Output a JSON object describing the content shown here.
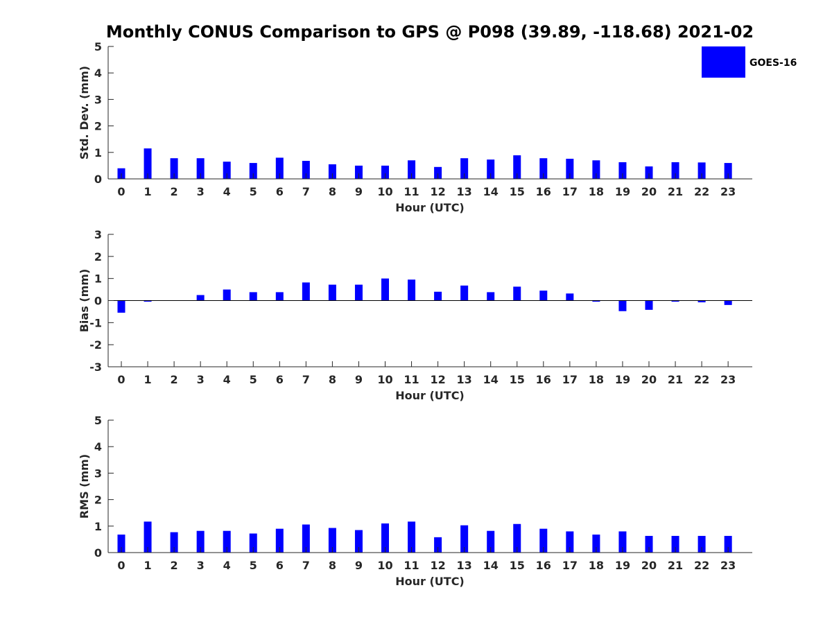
{
  "colors": {
    "bar": "#0000ff",
    "axis": "#262626",
    "background": "#ffffff"
  },
  "chart_data": {
    "type": "bar",
    "title": "Monthly CONUS Comparison to GPS @ P098 (39.89, -118.68) 2021-02",
    "legend": {
      "entries": [
        "GOES-16"
      ],
      "placement": "top-right"
    },
    "categories": [
      "0",
      "1",
      "2",
      "3",
      "4",
      "5",
      "6",
      "7",
      "8",
      "9",
      "10",
      "11",
      "12",
      "13",
      "14",
      "15",
      "16",
      "17",
      "18",
      "19",
      "20",
      "21",
      "22",
      "23"
    ],
    "panels": [
      {
        "xlabel": "Hour (UTC)",
        "ylabel": "Std. Dev. (mm)",
        "ylim": [
          0,
          5
        ],
        "yticks": [
          0,
          1,
          2,
          3,
          4,
          5
        ],
        "series": [
          {
            "name": "GOES-16",
            "values": [
              0.4,
              1.15,
              0.78,
              0.78,
              0.65,
              0.6,
              0.8,
              0.68,
              0.55,
              0.5,
              0.5,
              0.7,
              0.45,
              0.78,
              0.73,
              0.89,
              0.78,
              0.76,
              0.7,
              0.63,
              0.47,
              0.63,
              0.62,
              0.6
            ]
          }
        ]
      },
      {
        "xlabel": "Hour (UTC)",
        "ylabel": "Bias (mm)",
        "ylim": [
          -3,
          3
        ],
        "yticks": [
          -3,
          -2,
          -1,
          0,
          1,
          2,
          3
        ],
        "series": [
          {
            "name": "GOES-16",
            "values": [
              -0.55,
              -0.05,
              0.0,
              0.25,
              0.5,
              0.38,
              0.38,
              0.82,
              0.72,
              0.72,
              1.0,
              0.95,
              0.4,
              0.68,
              0.38,
              0.63,
              0.45,
              0.32,
              -0.05,
              -0.48,
              -0.42,
              -0.05,
              -0.08,
              -0.2
            ]
          }
        ]
      },
      {
        "xlabel": "Hour (UTC)",
        "ylabel": "RMS (mm)",
        "ylim": [
          0,
          5
        ],
        "yticks": [
          0,
          1,
          2,
          3,
          4,
          5
        ],
        "series": [
          {
            "name": "GOES-16",
            "values": [
              0.68,
              1.17,
              0.77,
              0.82,
              0.82,
              0.72,
              0.9,
              1.06,
              0.93,
              0.85,
              1.1,
              1.17,
              0.58,
              1.03,
              0.82,
              1.08,
              0.9,
              0.8,
              0.68,
              0.8,
              0.63,
              0.63,
              0.63,
              0.63
            ]
          }
        ]
      }
    ]
  }
}
